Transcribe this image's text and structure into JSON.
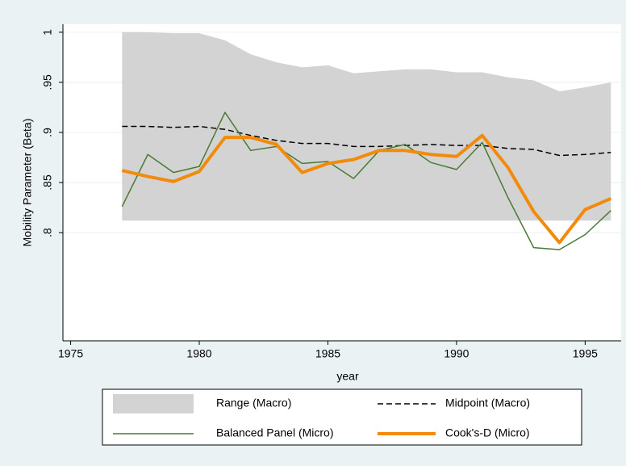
{
  "chart_data": {
    "type": "line",
    "x_label": "year",
    "y_label": "Mobility Parameter (Beta)",
    "x": [
      1977,
      1978,
      1979,
      1980,
      1981,
      1982,
      1983,
      1984,
      1985,
      1986,
      1987,
      1988,
      1989,
      1990,
      1991,
      1992,
      1993,
      1994,
      1995,
      1996
    ],
    "series": [
      {
        "name": "Range (Macro)",
        "kind": "band",
        "color": "#d3d3d3",
        "upper": [
          1.0,
          1.0,
          0.999,
          0.999,
          0.992,
          0.978,
          0.97,
          0.965,
          0.967,
          0.959,
          0.961,
          0.963,
          0.963,
          0.96,
          0.96,
          0.955,
          0.952,
          0.941,
          0.945,
          0.95
        ],
        "lower": [
          0.812,
          0.812,
          0.812,
          0.812,
          0.812,
          0.812,
          0.812,
          0.812,
          0.812,
          0.812,
          0.812,
          0.812,
          0.812,
          0.812,
          0.812,
          0.812,
          0.812,
          0.812,
          0.812,
          0.812
        ]
      },
      {
        "name": "Midpoint (Macro)",
        "kind": "line",
        "color": "#000000",
        "dashed": true,
        "values": [
          0.906,
          0.906,
          0.905,
          0.906,
          0.903,
          0.897,
          0.892,
          0.889,
          0.889,
          0.886,
          0.886,
          0.887,
          0.888,
          0.887,
          0.887,
          0.884,
          0.883,
          0.877,
          0.878,
          0.88
        ]
      },
      {
        "name": "Balanced Panel (Micro)",
        "kind": "line",
        "color": "#4a7a34",
        "values": [
          0.826,
          0.878,
          0.86,
          0.866,
          0.92,
          0.882,
          0.886,
          0.869,
          0.871,
          0.854,
          0.882,
          0.888,
          0.87,
          0.863,
          0.89,
          0.835,
          0.785,
          0.783,
          0.798,
          0.822
        ]
      },
      {
        "name": "Cook's-D (Micro)",
        "kind": "line",
        "color": "#f28a0c",
        "values": [
          0.862,
          0.856,
          0.851,
          0.861,
          0.895,
          0.895,
          0.888,
          0.86,
          0.869,
          0.873,
          0.882,
          0.882,
          0.878,
          0.876,
          0.897,
          0.865,
          0.821,
          0.79,
          0.823,
          0.834
        ]
      }
    ],
    "xlim": [
      1974.7,
      1996.4
    ],
    "ylim": [
      0.692,
      1.008
    ],
    "xticks": [
      1975,
      1980,
      1985,
      1990,
      1995
    ],
    "yticks": [
      1,
      {
        "value": 0.95,
        "label": ".95"
      },
      {
        "value": 0.9,
        "label": ".9"
      },
      {
        "value": 0.85,
        "label": ".85"
      },
      {
        "value": 0.8,
        "label": ".8"
      }
    ],
    "grid": true
  }
}
